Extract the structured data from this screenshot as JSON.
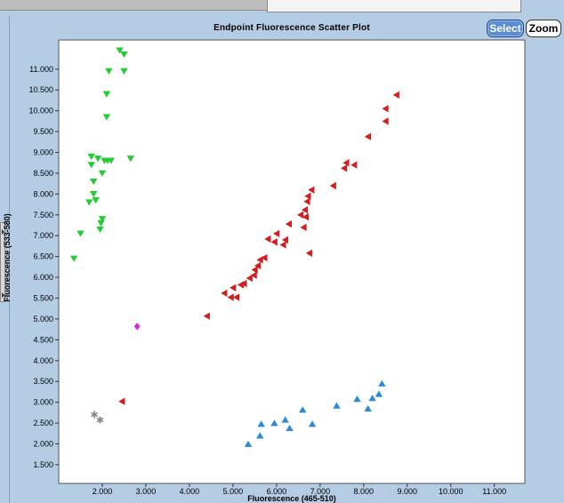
{
  "chart_data": {
    "type": "scatter",
    "title": "Endpoint Fluorescence Scatter Plot",
    "xlabel": "Fluorescence (465-510)",
    "ylabel": "Fluorescence (533-580)",
    "xlim": [
      1.0,
      11.7
    ],
    "ylim": [
      1.05,
      11.7
    ],
    "x_ticks": [
      "2.000",
      "3.000",
      "4.000",
      "5.000",
      "6.000",
      "7.000",
      "8.000",
      "9.000",
      "10.000",
      "11.000"
    ],
    "y_ticks": [
      "1.500",
      "2.000",
      "2.500",
      "3.000",
      "3.500",
      "4.000",
      "4.500",
      "5.000",
      "5.500",
      "6.000",
      "6.500",
      "7.000",
      "7.500",
      "8.000",
      "8.500",
      "9.000",
      "9.500",
      "10.000",
      "10.500",
      "11.000"
    ],
    "grid": false,
    "series": [
      {
        "color": "#22cc33",
        "marker": "triangle-down",
        "points": [
          [
            1.35,
            6.45
          ],
          [
            1.5,
            7.05
          ],
          [
            1.7,
            7.8
          ],
          [
            1.75,
            8.7
          ],
          [
            1.75,
            8.9
          ],
          [
            1.8,
            8.3
          ],
          [
            1.85,
            7.85
          ],
          [
            1.8,
            8.0
          ],
          [
            1.9,
            8.85
          ],
          [
            1.95,
            7.15
          ],
          [
            1.97,
            7.3
          ],
          [
            2.0,
            7.4
          ],
          [
            2.0,
            8.5
          ],
          [
            2.05,
            8.8
          ],
          [
            2.1,
            9.85
          ],
          [
            2.1,
            10.4
          ],
          [
            2.12,
            8.8
          ],
          [
            2.15,
            10.95
          ],
          [
            2.2,
            8.8
          ],
          [
            2.4,
            11.45
          ],
          [
            2.5,
            11.35
          ],
          [
            2.5,
            10.95
          ],
          [
            2.65,
            8.85
          ]
        ]
      },
      {
        "color": "#d21e1e",
        "marker": "triangle-left",
        "points": [
          [
            2.45,
            3.02
          ],
          [
            4.4,
            5.07
          ],
          [
            4.8,
            5.62
          ],
          [
            4.95,
            5.52
          ],
          [
            5.0,
            5.75
          ],
          [
            5.08,
            5.52
          ],
          [
            5.18,
            5.82
          ],
          [
            5.25,
            5.85
          ],
          [
            5.38,
            5.98
          ],
          [
            5.48,
            6.05
          ],
          [
            5.5,
            6.18
          ],
          [
            5.57,
            6.28
          ],
          [
            5.62,
            6.42
          ],
          [
            5.72,
            6.47
          ],
          [
            5.8,
            6.92
          ],
          [
            5.95,
            6.85
          ],
          [
            6.0,
            7.05
          ],
          [
            6.15,
            6.78
          ],
          [
            6.2,
            6.9
          ],
          [
            6.28,
            7.28
          ],
          [
            6.55,
            7.5
          ],
          [
            6.62,
            7.2
          ],
          [
            6.65,
            7.62
          ],
          [
            6.67,
            7.45
          ],
          [
            6.7,
            7.82
          ],
          [
            6.72,
            7.95
          ],
          [
            6.75,
            6.58
          ],
          [
            6.8,
            8.1
          ],
          [
            7.3,
            8.2
          ],
          [
            7.55,
            8.62
          ],
          [
            7.6,
            8.75
          ],
          [
            7.78,
            8.7
          ],
          [
            8.1,
            9.38
          ],
          [
            8.5,
            9.75
          ],
          [
            8.5,
            10.05
          ],
          [
            8.75,
            10.38
          ]
        ]
      },
      {
        "color": "#2a8ad8",
        "marker": "triangle-up",
        "points": [
          [
            5.35,
            2.0
          ],
          [
            5.62,
            2.2
          ],
          [
            5.65,
            2.48
          ],
          [
            5.95,
            2.5
          ],
          [
            6.2,
            2.58
          ],
          [
            6.3,
            2.38
          ],
          [
            6.6,
            2.82
          ],
          [
            6.82,
            2.48
          ],
          [
            7.38,
            2.92
          ],
          [
            7.85,
            3.08
          ],
          [
            8.1,
            2.85
          ],
          [
            8.2,
            3.1
          ],
          [
            8.35,
            3.2
          ],
          [
            8.42,
            3.45
          ]
        ]
      },
      {
        "color": "#dd22dd",
        "marker": "diamond",
        "points": [
          [
            2.8,
            4.82
          ]
        ]
      },
      {
        "color": "#888888",
        "marker": "star",
        "points": [
          [
            1.82,
            2.7
          ],
          [
            1.95,
            2.58
          ]
        ]
      }
    ]
  },
  "controls": {
    "select_label": "Select",
    "zoom_label": "Zoom"
  }
}
